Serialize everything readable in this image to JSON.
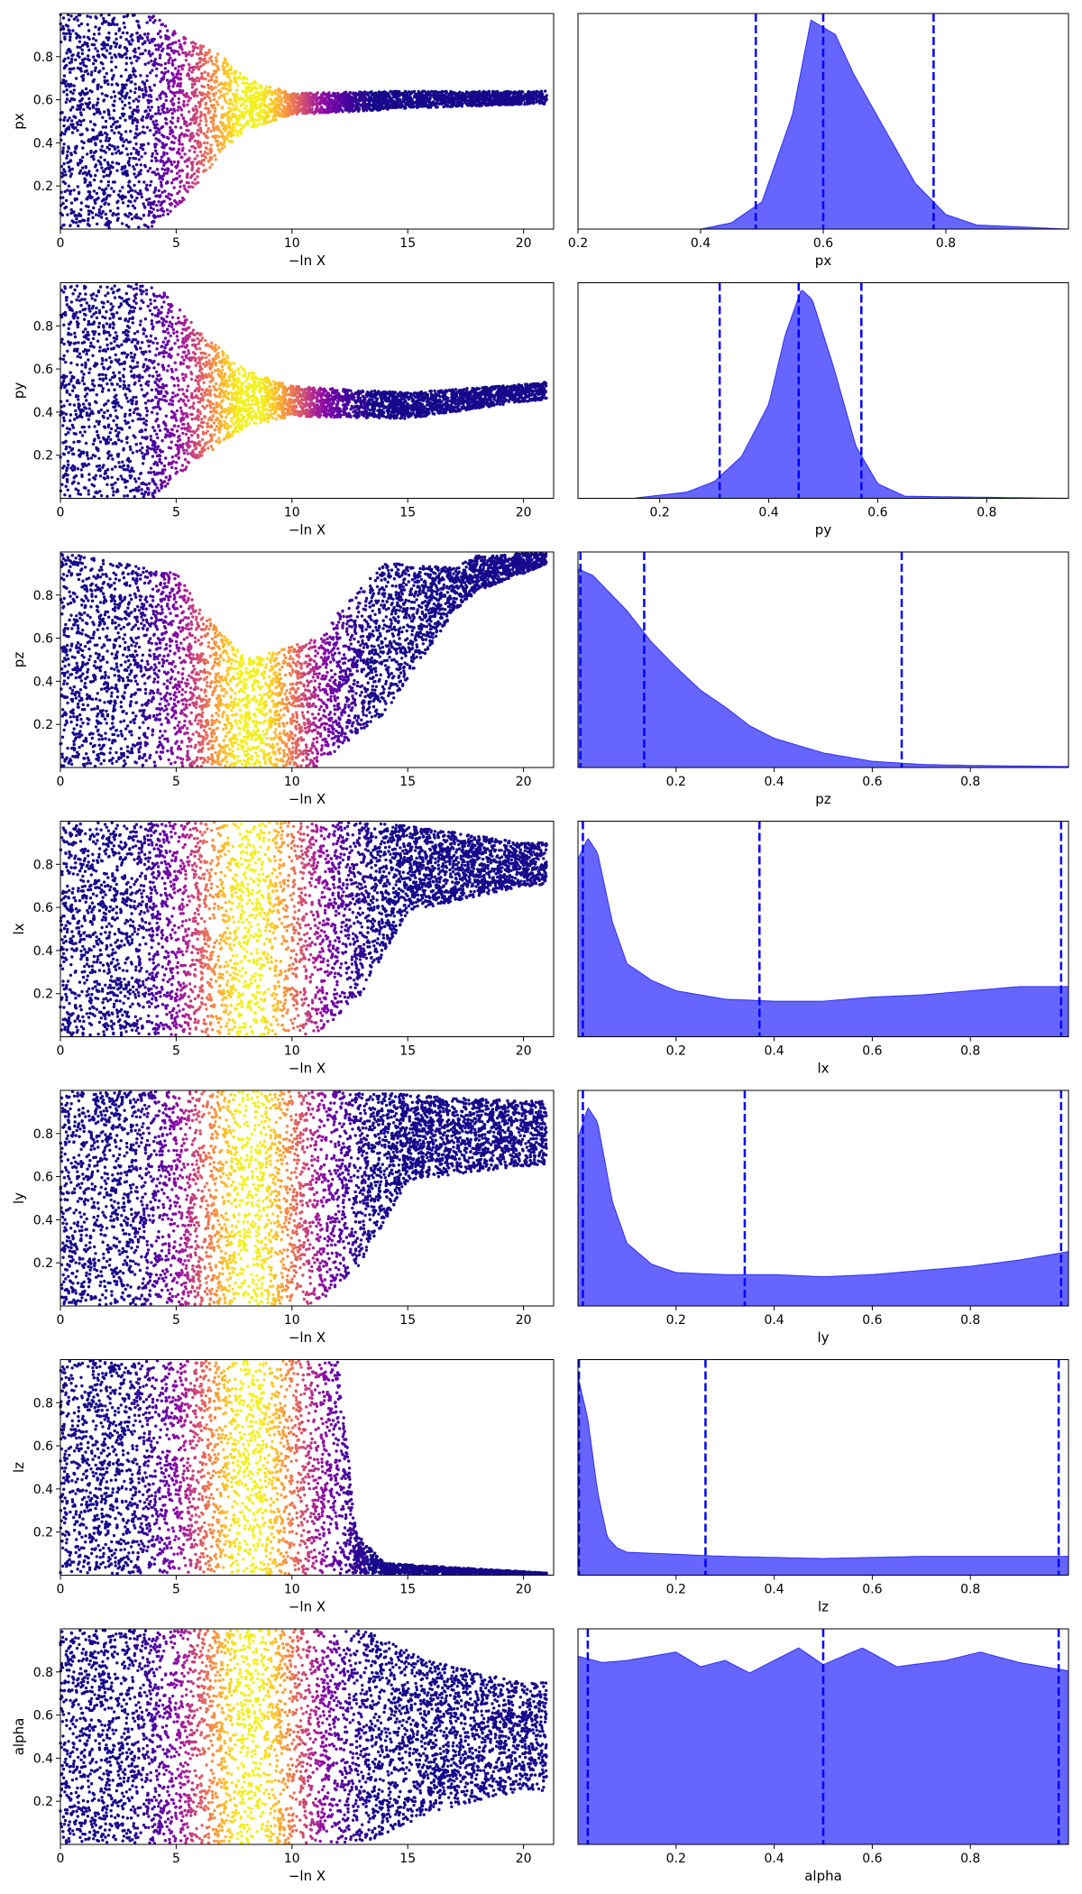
{
  "chart_data": [
    {
      "type": "scatter",
      "ylabel": "px",
      "xlabel": "−ln X",
      "xlim": [
        0,
        21.3
      ],
      "ylim": [
        0,
        1
      ],
      "xticks": [
        "0",
        "5",
        "10",
        "15",
        "20"
      ],
      "yticks": [
        "0.2",
        "0.4",
        "0.6",
        "0.8"
      ],
      "trace": {
        "center": [
          [
            0,
            0.5
          ],
          [
            5,
            0.5
          ],
          [
            7,
            0.58
          ],
          [
            10,
            0.58
          ],
          [
            15,
            0.6
          ],
          [
            21,
            0.61
          ]
        ],
        "halfwidth": [
          [
            0,
            0.5
          ],
          [
            4,
            0.5
          ],
          [
            6,
            0.32
          ],
          [
            8,
            0.12
          ],
          [
            10,
            0.05
          ],
          [
            15,
            0.04
          ],
          [
            20,
            0.03
          ]
        ],
        "xmax": 21,
        "colormap": "plasma",
        "peak_x": 8.2
      }
    },
    {
      "type": "area",
      "xlabel": "px",
      "xlim": [
        0.2,
        1.0
      ],
      "xticks": [
        "0.2",
        "0.4",
        "0.6",
        "0.8"
      ],
      "density": [
        [
          0.2,
          0.0
        ],
        [
          0.4,
          0.0
        ],
        [
          0.45,
          0.03
        ],
        [
          0.5,
          0.13
        ],
        [
          0.55,
          0.55
        ],
        [
          0.58,
          1.0
        ],
        [
          0.62,
          0.93
        ],
        [
          0.65,
          0.74
        ],
        [
          0.7,
          0.48
        ],
        [
          0.75,
          0.22
        ],
        [
          0.8,
          0.07
        ],
        [
          0.85,
          0.02
        ],
        [
          1.0,
          0.0
        ]
      ],
      "quantile_lines": [
        0.49,
        0.6,
        0.78
      ],
      "fill": "#6666ff",
      "line": "#0000ff"
    },
    {
      "type": "scatter",
      "ylabel": "py",
      "xlabel": "−ln X",
      "xlim": [
        0,
        21.3
      ],
      "ylim": [
        0,
        1
      ],
      "xticks": [
        "0",
        "5",
        "10",
        "15",
        "20"
      ],
      "yticks": [
        "0.2",
        "0.4",
        "0.6",
        "0.8"
      ],
      "trace": {
        "center": [
          [
            0,
            0.5
          ],
          [
            5,
            0.5
          ],
          [
            7,
            0.47
          ],
          [
            10,
            0.45
          ],
          [
            15,
            0.43
          ],
          [
            21,
            0.5
          ]
        ],
        "halfwidth": [
          [
            0,
            0.5
          ],
          [
            4,
            0.5
          ],
          [
            6,
            0.3
          ],
          [
            8,
            0.13
          ],
          [
            10,
            0.07
          ],
          [
            15,
            0.06
          ],
          [
            20,
            0.04
          ]
        ],
        "xmax": 21,
        "colormap": "plasma",
        "peak_x": 8.2
      }
    },
    {
      "type": "area",
      "xlabel": "py",
      "xlim": [
        0.05,
        0.95
      ],
      "xticks": [
        "0.2",
        "0.4",
        "0.6",
        "0.8"
      ],
      "density": [
        [
          0.05,
          0.0
        ],
        [
          0.15,
          0.0
        ],
        [
          0.25,
          0.03
        ],
        [
          0.3,
          0.08
        ],
        [
          0.35,
          0.2
        ],
        [
          0.4,
          0.45
        ],
        [
          0.43,
          0.78
        ],
        [
          0.46,
          1.0
        ],
        [
          0.48,
          0.95
        ],
        [
          0.52,
          0.62
        ],
        [
          0.56,
          0.25
        ],
        [
          0.6,
          0.07
        ],
        [
          0.65,
          0.01
        ],
        [
          0.95,
          0.0
        ]
      ],
      "quantile_lines": [
        0.31,
        0.455,
        0.57
      ],
      "fill": "#6666ff",
      "line": "#0000ff"
    },
    {
      "type": "scatter",
      "ylabel": "pz",
      "xlabel": "−ln X",
      "xlim": [
        0,
        21.3
      ],
      "ylim": [
        0,
        1
      ],
      "xticks": [
        "0",
        "5",
        "10",
        "15",
        "20"
      ],
      "yticks": [
        "0.2",
        "0.4",
        "0.6",
        "0.8"
      ],
      "trace": {
        "center": [
          [
            0,
            0.5
          ],
          [
            5,
            0.45
          ],
          [
            8,
            0.25
          ],
          [
            11,
            0.3
          ],
          [
            14,
            0.6
          ],
          [
            18,
            0.9
          ],
          [
            21,
            0.97
          ]
        ],
        "halfwidth": [
          [
            0,
            0.5
          ],
          [
            5,
            0.45
          ],
          [
            8,
            0.25
          ],
          [
            11,
            0.3
          ],
          [
            14,
            0.35
          ],
          [
            17,
            0.1
          ],
          [
            21,
            0.03
          ]
        ],
        "xmax": 21,
        "colormap": "plasma",
        "peak_x": 8.2
      }
    },
    {
      "type": "area",
      "xlabel": "pz",
      "xlim": [
        0.0,
        1.0
      ],
      "xticks": [
        "0.2",
        "0.4",
        "0.6",
        "0.8"
      ],
      "density": [
        [
          0.0,
          0.95
        ],
        [
          0.03,
          0.92
        ],
        [
          0.1,
          0.75
        ],
        [
          0.15,
          0.6
        ],
        [
          0.2,
          0.48
        ],
        [
          0.25,
          0.37
        ],
        [
          0.3,
          0.29
        ],
        [
          0.35,
          0.2
        ],
        [
          0.4,
          0.14
        ],
        [
          0.5,
          0.07
        ],
        [
          0.6,
          0.03
        ],
        [
          0.7,
          0.015
        ],
        [
          0.8,
          0.01
        ],
        [
          1.0,
          0.005
        ]
      ],
      "quantile_lines": [
        0.005,
        0.135,
        0.66
      ],
      "fill": "#6666ff",
      "line": "#0000ff"
    },
    {
      "type": "scatter",
      "ylabel": "lx",
      "xlabel": "−ln X",
      "xlim": [
        0,
        21.3
      ],
      "ylim": [
        0,
        1
      ],
      "xticks": [
        "0",
        "5",
        "10",
        "15",
        "20"
      ],
      "yticks": [
        "0.2",
        "0.4",
        "0.6",
        "0.8"
      ],
      "trace": {
        "center": [
          [
            0,
            0.5
          ],
          [
            11,
            0.5
          ],
          [
            13,
            0.6
          ],
          [
            15,
            0.78
          ],
          [
            20,
            0.8
          ]
        ],
        "halfwidth": [
          [
            0,
            0.5
          ],
          [
            11,
            0.5
          ],
          [
            13,
            0.4
          ],
          [
            15,
            0.2
          ],
          [
            20,
            0.1
          ]
        ],
        "xmax": 21,
        "colormap": "plasma",
        "peak_x": 8.2
      }
    },
    {
      "type": "area",
      "xlabel": "lx",
      "xlim": [
        0.0,
        1.0
      ],
      "xticks": [
        "0.2",
        "0.4",
        "0.6",
        "0.8"
      ],
      "density": [
        [
          0.0,
          0.85
        ],
        [
          0.02,
          0.95
        ],
        [
          0.04,
          0.88
        ],
        [
          0.07,
          0.55
        ],
        [
          0.1,
          0.35
        ],
        [
          0.15,
          0.27
        ],
        [
          0.2,
          0.22
        ],
        [
          0.3,
          0.18
        ],
        [
          0.4,
          0.17
        ],
        [
          0.5,
          0.17
        ],
        [
          0.6,
          0.19
        ],
        [
          0.7,
          0.2
        ],
        [
          0.8,
          0.22
        ],
        [
          0.9,
          0.24
        ],
        [
          1.0,
          0.24
        ]
      ],
      "quantile_lines": [
        0.01,
        0.37,
        0.985
      ],
      "fill": "#6666ff",
      "line": "#0000ff"
    },
    {
      "type": "scatter",
      "ylabel": "ly",
      "xlabel": "−ln X",
      "xlim": [
        0,
        21.3
      ],
      "ylim": [
        0,
        1
      ],
      "xticks": [
        "0",
        "5",
        "10",
        "15",
        "20"
      ],
      "yticks": [
        "0.2",
        "0.4",
        "0.6",
        "0.8"
      ],
      "trace": {
        "center": [
          [
            0,
            0.5
          ],
          [
            11,
            0.5
          ],
          [
            13,
            0.6
          ],
          [
            15,
            0.78
          ],
          [
            20,
            0.8
          ]
        ],
        "halfwidth": [
          [
            0,
            0.5
          ],
          [
            11,
            0.5
          ],
          [
            13,
            0.4
          ],
          [
            15,
            0.2
          ],
          [
            20,
            0.15
          ]
        ],
        "xmax": 21,
        "colormap": "plasma",
        "peak_x": 8.2
      }
    },
    {
      "type": "area",
      "xlabel": "ly",
      "xlim": [
        0.0,
        1.0
      ],
      "xticks": [
        "0.2",
        "0.4",
        "0.6",
        "0.8"
      ],
      "density": [
        [
          0.0,
          0.8
        ],
        [
          0.02,
          0.95
        ],
        [
          0.04,
          0.88
        ],
        [
          0.07,
          0.5
        ],
        [
          0.1,
          0.3
        ],
        [
          0.15,
          0.2
        ],
        [
          0.2,
          0.16
        ],
        [
          0.3,
          0.15
        ],
        [
          0.4,
          0.15
        ],
        [
          0.5,
          0.14
        ],
        [
          0.6,
          0.15
        ],
        [
          0.7,
          0.17
        ],
        [
          0.8,
          0.19
        ],
        [
          0.9,
          0.22
        ],
        [
          1.0,
          0.26
        ]
      ],
      "quantile_lines": [
        0.01,
        0.34,
        0.985
      ],
      "fill": "#6666ff",
      "line": "#0000ff"
    },
    {
      "type": "scatter",
      "ylabel": "lz",
      "xlabel": "−ln X",
      "xlim": [
        0,
        21.3
      ],
      "ylim": [
        0,
        1
      ],
      "xticks": [
        "0",
        "5",
        "10",
        "15",
        "20"
      ],
      "yticks": [
        "0.2",
        "0.4",
        "0.6",
        "0.8"
      ],
      "trace": {
        "center": [
          [
            0,
            0.5
          ],
          [
            12,
            0.5
          ],
          [
            12.8,
            0.1
          ],
          [
            14,
            0.03
          ],
          [
            21,
            0.005
          ]
        ],
        "halfwidth": [
          [
            0,
            0.5
          ],
          [
            12,
            0.5
          ],
          [
            12.8,
            0.09
          ],
          [
            14,
            0.025
          ],
          [
            21,
            0.005
          ]
        ],
        "xmax": 21,
        "colormap": "plasma",
        "peak_x": 8.2
      }
    },
    {
      "type": "area",
      "xlabel": "lz",
      "xlim": [
        0.0,
        1.0
      ],
      "xticks": [
        "0.2",
        "0.4",
        "0.6",
        "0.8"
      ],
      "density": [
        [
          0.0,
          0.95
        ],
        [
          0.02,
          0.75
        ],
        [
          0.04,
          0.4
        ],
        [
          0.06,
          0.18
        ],
        [
          0.08,
          0.13
        ],
        [
          0.1,
          0.11
        ],
        [
          0.2,
          0.1
        ],
        [
          0.3,
          0.09
        ],
        [
          0.4,
          0.085
        ],
        [
          0.5,
          0.08
        ],
        [
          0.6,
          0.085
        ],
        [
          0.7,
          0.09
        ],
        [
          0.8,
          0.09
        ],
        [
          0.9,
          0.09
        ],
        [
          1.0,
          0.09
        ]
      ],
      "quantile_lines": [
        0.002,
        0.26,
        0.98
      ],
      "fill": "#6666ff",
      "line": "#0000ff"
    },
    {
      "type": "scatter",
      "ylabel": "alpha",
      "xlabel": "−ln X",
      "xlim": [
        0,
        21.3
      ],
      "ylim": [
        0,
        1
      ],
      "xticks": [
        "0",
        "5",
        "10",
        "15",
        "20"
      ],
      "yticks": [
        "0.2",
        "0.4",
        "0.6",
        "0.8"
      ],
      "trace": {
        "center": [
          [
            0,
            0.5
          ],
          [
            21,
            0.5
          ]
        ],
        "halfwidth": [
          [
            0,
            0.5
          ],
          [
            13,
            0.5
          ],
          [
            16,
            0.35
          ],
          [
            20,
            0.25
          ]
        ],
        "xmax": 21,
        "colormap": "plasma",
        "peak_x": 8.2
      }
    },
    {
      "type": "area",
      "xlabel": "alpha",
      "xlim": [
        0.0,
        1.0
      ],
      "xticks": [
        "0.2",
        "0.4",
        "0.6",
        "0.8"
      ],
      "density": [
        [
          0.0,
          0.9
        ],
        [
          0.05,
          0.87
        ],
        [
          0.1,
          0.88
        ],
        [
          0.2,
          0.92
        ],
        [
          0.25,
          0.85
        ],
        [
          0.3,
          0.88
        ],
        [
          0.35,
          0.82
        ],
        [
          0.45,
          0.94
        ],
        [
          0.5,
          0.86
        ],
        [
          0.58,
          0.94
        ],
        [
          0.65,
          0.85
        ],
        [
          0.75,
          0.88
        ],
        [
          0.82,
          0.92
        ],
        [
          0.9,
          0.87
        ],
        [
          1.0,
          0.83
        ]
      ],
      "quantile_lines": [
        0.02,
        0.5,
        0.98
      ],
      "fill": "#6666ff",
      "line": "#0000ff"
    }
  ]
}
